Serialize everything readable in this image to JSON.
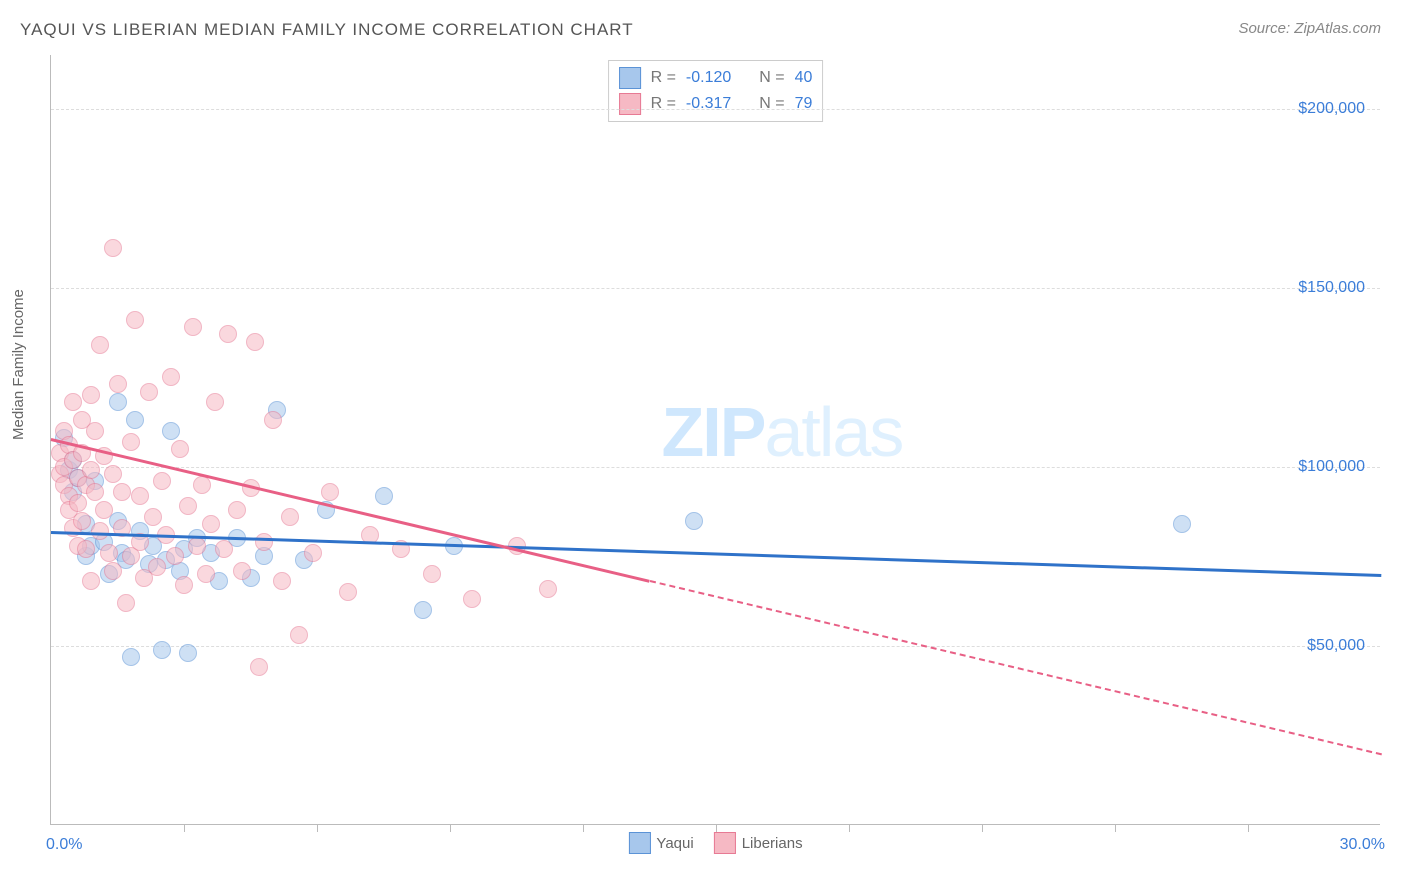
{
  "title": "YAQUI VS LIBERIAN MEDIAN FAMILY INCOME CORRELATION CHART",
  "source": "Source: ZipAtlas.com",
  "watermark_bold": "ZIP",
  "watermark_light": "atlas",
  "chart": {
    "type": "scatter",
    "xlim": [
      0,
      30
    ],
    "ylim": [
      0,
      215000
    ],
    "x_axis_label_left": "0.0%",
    "x_axis_label_right": "30.0%",
    "y_axis_label": "Median Family Income",
    "y_ticks": [
      {
        "value": 50000,
        "label": "$50,000"
      },
      {
        "value": 100000,
        "label": "$100,000"
      },
      {
        "value": 150000,
        "label": "$150,000"
      },
      {
        "value": 200000,
        "label": "$200,000"
      }
    ],
    "x_ticks_minor": [
      3,
      6,
      9,
      12,
      15,
      18,
      21,
      24,
      27
    ],
    "background_color": "#ffffff",
    "grid_color": "#dddddd",
    "axis_color": "#bbbbbb",
    "tick_label_color": "#3b7dd8",
    "marker_radius": 9,
    "marker_opacity": 0.55,
    "series": [
      {
        "name": "Yaqui",
        "fill": "#a7c7ec",
        "stroke": "#5b93d6",
        "trend_color": "#2f72c9",
        "trend_start": {
          "x": 0,
          "y": 82000
        },
        "trend_end": {
          "x": 30,
          "y": 70000
        },
        "trend_dash_after_x": null,
        "R_label": "R =",
        "R_value": "-0.120",
        "N_label": "N =",
        "N_value": "40",
        "points": [
          [
            0.3,
            108000
          ],
          [
            0.4,
            99000
          ],
          [
            0.5,
            102000
          ],
          [
            0.5,
            93000
          ],
          [
            0.6,
            97000
          ],
          [
            0.8,
            84000
          ],
          [
            0.8,
            75000
          ],
          [
            0.9,
            78000
          ],
          [
            1.0,
            96000
          ],
          [
            1.2,
            79000
          ],
          [
            1.3,
            70000
          ],
          [
            1.5,
            118000
          ],
          [
            1.5,
            85000
          ],
          [
            1.6,
            76000
          ],
          [
            1.7,
            74000
          ],
          [
            1.8,
            47000
          ],
          [
            1.9,
            113000
          ],
          [
            2.0,
            82000
          ],
          [
            2.2,
            73000
          ],
          [
            2.3,
            78000
          ],
          [
            2.5,
            49000
          ],
          [
            2.6,
            74000
          ],
          [
            2.7,
            110000
          ],
          [
            2.9,
            71000
          ],
          [
            3.0,
            77000
          ],
          [
            3.1,
            48000
          ],
          [
            3.3,
            80000
          ],
          [
            3.6,
            76000
          ],
          [
            3.8,
            68000
          ],
          [
            4.2,
            80000
          ],
          [
            4.5,
            69000
          ],
          [
            4.8,
            75000
          ],
          [
            5.1,
            116000
          ],
          [
            5.7,
            74000
          ],
          [
            6.2,
            88000
          ],
          [
            7.5,
            92000
          ],
          [
            8.4,
            60000
          ],
          [
            9.1,
            78000
          ],
          [
            14.5,
            85000
          ],
          [
            25.5,
            84000
          ]
        ]
      },
      {
        "name": "Liberians",
        "fill": "#f6b9c4",
        "stroke": "#e77a94",
        "trend_color": "#e85f85",
        "trend_start": {
          "x": 0,
          "y": 108000
        },
        "trend_end": {
          "x": 30,
          "y": 20000
        },
        "trend_dash_after_x": 13.5,
        "R_label": "R =",
        "R_value": "-0.317",
        "N_label": "N =",
        "N_value": "79",
        "points": [
          [
            0.2,
            104000
          ],
          [
            0.2,
            98000
          ],
          [
            0.3,
            110000
          ],
          [
            0.3,
            95000
          ],
          [
            0.3,
            100000
          ],
          [
            0.4,
            106000
          ],
          [
            0.4,
            92000
          ],
          [
            0.4,
            88000
          ],
          [
            0.5,
            118000
          ],
          [
            0.5,
            83000
          ],
          [
            0.5,
            102000
          ],
          [
            0.6,
            97000
          ],
          [
            0.6,
            90000
          ],
          [
            0.6,
            78000
          ],
          [
            0.7,
            113000
          ],
          [
            0.7,
            104000
          ],
          [
            0.7,
            85000
          ],
          [
            0.8,
            95000
          ],
          [
            0.8,
            77000
          ],
          [
            0.9,
            120000
          ],
          [
            0.9,
            99000
          ],
          [
            0.9,
            68000
          ],
          [
            1.0,
            110000
          ],
          [
            1.0,
            93000
          ],
          [
            1.1,
            134000
          ],
          [
            1.1,
            82000
          ],
          [
            1.2,
            103000
          ],
          [
            1.2,
            88000
          ],
          [
            1.3,
            76000
          ],
          [
            1.4,
            98000
          ],
          [
            1.4,
            71000
          ],
          [
            1.4,
            161000
          ],
          [
            1.5,
            123000
          ],
          [
            1.6,
            93000
          ],
          [
            1.6,
            83000
          ],
          [
            1.7,
            62000
          ],
          [
            1.8,
            107000
          ],
          [
            1.8,
            75000
          ],
          [
            1.9,
            141000
          ],
          [
            2.0,
            92000
          ],
          [
            2.0,
            79000
          ],
          [
            2.1,
            69000
          ],
          [
            2.2,
            121000
          ],
          [
            2.3,
            86000
          ],
          [
            2.4,
            72000
          ],
          [
            2.5,
            96000
          ],
          [
            2.6,
            81000
          ],
          [
            2.7,
            125000
          ],
          [
            2.8,
            75000
          ],
          [
            2.9,
            105000
          ],
          [
            3.0,
            67000
          ],
          [
            3.1,
            89000
          ],
          [
            3.2,
            139000
          ],
          [
            3.3,
            78000
          ],
          [
            3.4,
            95000
          ],
          [
            3.5,
            70000
          ],
          [
            3.6,
            84000
          ],
          [
            3.7,
            118000
          ],
          [
            3.9,
            77000
          ],
          [
            4.0,
            137000
          ],
          [
            4.2,
            88000
          ],
          [
            4.3,
            71000
          ],
          [
            4.5,
            94000
          ],
          [
            4.6,
            135000
          ],
          [
            4.7,
            44000
          ],
          [
            4.8,
            79000
          ],
          [
            5.0,
            113000
          ],
          [
            5.2,
            68000
          ],
          [
            5.4,
            86000
          ],
          [
            5.6,
            53000
          ],
          [
            5.9,
            76000
          ],
          [
            6.3,
            93000
          ],
          [
            6.7,
            65000
          ],
          [
            7.2,
            81000
          ],
          [
            7.9,
            77000
          ],
          [
            8.6,
            70000
          ],
          [
            9.5,
            63000
          ],
          [
            10.5,
            78000
          ],
          [
            11.2,
            66000
          ]
        ]
      }
    ]
  }
}
